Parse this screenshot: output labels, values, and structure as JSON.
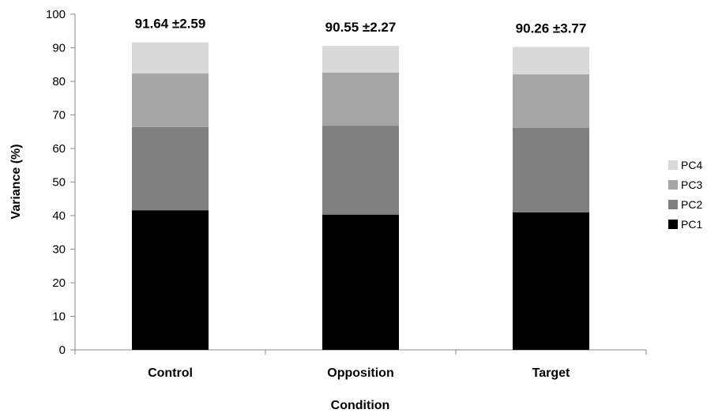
{
  "chart_data": {
    "type": "bar",
    "stacked": true,
    "title": "",
    "xlabel": "Condition",
    "ylabel": "Variance (%)",
    "ylim": [
      0,
      100
    ],
    "yticks": [
      0,
      10,
      20,
      30,
      40,
      50,
      60,
      70,
      80,
      90,
      100
    ],
    "grid": false,
    "legend_position": "right",
    "categories": [
      "Control",
      "Opposition",
      "Target"
    ],
    "series": [
      {
        "name": "PC1",
        "color": "#000000",
        "values": [
          41.6,
          40.3,
          41.0
        ]
      },
      {
        "name": "PC2",
        "color": "#808080",
        "values": [
          24.8,
          26.5,
          25.2
        ]
      },
      {
        "name": "PC3",
        "color": "#a6a6a6",
        "values": [
          16.0,
          15.8,
          15.9
        ]
      },
      {
        "name": "PC4",
        "color": "#d9d9d9",
        "values": [
          9.24,
          7.95,
          8.16
        ]
      }
    ],
    "total_labels": [
      "91.64 ±2.59",
      "90.55 ±2.27",
      "90.26 ±3.77"
    ]
  }
}
